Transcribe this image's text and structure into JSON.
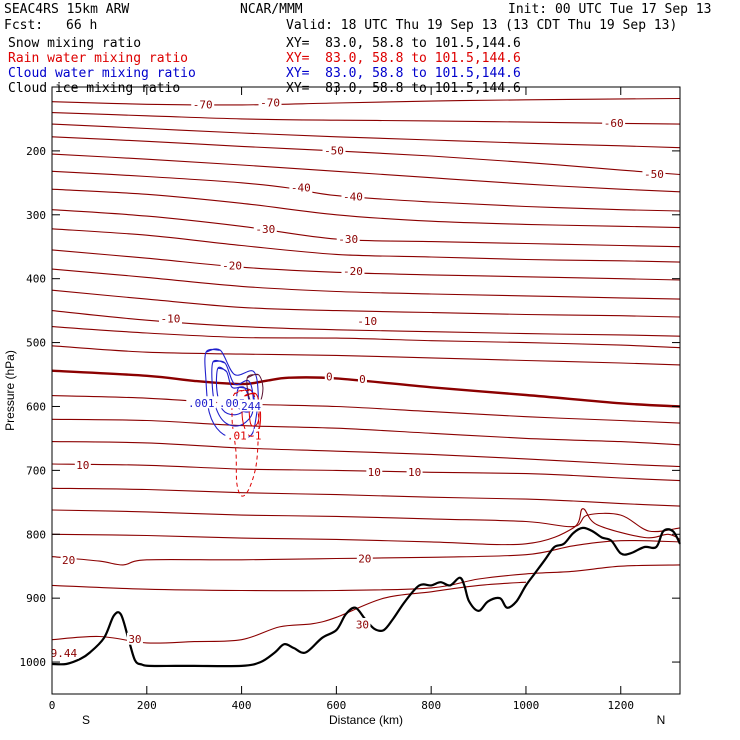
{
  "header": {
    "model": "SEAC4RS 15km ARW",
    "center": "NCAR/MMM",
    "init": "Init: 00 UTC Tue 17 Sep 13",
    "fcst_label": "Fcst:",
    "fcst_value": "66 h",
    "valid": "Valid: 18 UTC Thu 19 Sep 13 (13 CDT Thu 19 Sep 13)"
  },
  "fields": [
    {
      "name": "Snow mixing ratio",
      "xy": "XY=  83.0, 58.8 to 101.5,144.6",
      "color": "#000000"
    },
    {
      "name": "Rain water mixing ratio",
      "xy": "XY=  83.0, 58.8 to 101.5,144.6",
      "color": "#dd0000"
    },
    {
      "name": "Cloud water mixing ratio",
      "xy": "XY=  83.0, 58.8 to 101.5,144.6",
      "color": "#0000cc"
    },
    {
      "name": "Cloud ice mixing ratio",
      "xy": "XY=  83.0, 58.8 to 101.5,144.6",
      "color": "#000000"
    }
  ],
  "chart_data": {
    "type": "line",
    "xlabel": "Distance (km)",
    "ylabel": "Pressure (hPa)",
    "xlim": [
      0,
      1325
    ],
    "ylim": [
      1050,
      100
    ],
    "x_ticks": [
      0,
      200,
      400,
      600,
      800,
      1000,
      1200
    ],
    "x_tick_labels": [
      "0",
      "200",
      "400",
      "600",
      "800",
      "1000",
      "1200"
    ],
    "y_ticks": [
      200,
      300,
      400,
      500,
      600,
      700,
      800,
      900,
      1000
    ],
    "y_tick_labels": [
      "200",
      "300",
      "400",
      "500",
      "600",
      "700",
      "800",
      "900",
      "1000"
    ],
    "end_labels": {
      "left": "S",
      "right": "N"
    },
    "temperature_contour_color": "#8b0000",
    "temperature_labels": [
      {
        "text": "-70",
        "x": 318,
        "p": 128
      },
      {
        "text": "-70",
        "x": 460,
        "p": 125
      },
      {
        "text": "-60",
        "x": 1185,
        "p": 157
      },
      {
        "text": "-50",
        "x": 595,
        "p": 200
      },
      {
        "text": "-50",
        "x": 1270,
        "p": 237
      },
      {
        "text": "-40",
        "x": 525,
        "p": 258
      },
      {
        "text": "-40",
        "x": 635,
        "p": 272
      },
      {
        "text": "-30",
        "x": 450,
        "p": 323
      },
      {
        "text": "-30",
        "x": 625,
        "p": 339
      },
      {
        "text": "-20",
        "x": 380,
        "p": 380
      },
      {
        "text": "-20",
        "x": 635,
        "p": 389
      },
      {
        "text": "-10",
        "x": 250,
        "p": 463
      },
      {
        "text": "-10",
        "x": 665,
        "p": 467
      },
      {
        "text": "0",
        "x": 585,
        "p": 554
      },
      {
        "text": "0",
        "x": 655,
        "p": 558
      },
      {
        "text": "10",
        "x": 65,
        "p": 692
      },
      {
        "text": "10",
        "x": 680,
        "p": 703
      },
      {
        "text": "10",
        "x": 765,
        "p": 703
      },
      {
        "text": "20",
        "x": 35,
        "p": 841
      },
      {
        "text": "20",
        "x": 660,
        "p": 839
      },
      {
        "text": "30",
        "x": 175,
        "p": 965
      },
      {
        "text": "30",
        "x": 655,
        "p": 942
      },
      {
        "text": "9.44",
        "x": 25,
        "p": 987
      }
    ],
    "temperature_isotherms": [
      {
        "label": "-70",
        "x": [
          0,
          200,
          400,
          600,
          800,
          1000,
          1325
        ],
        "p": [
          123,
          127,
          128,
          125,
          122,
          120,
          118
        ]
      },
      {
        "label": "-60",
        "x": [
          0,
          200,
          400,
          600,
          800,
          1000,
          1200,
          1325
        ],
        "p": [
          140,
          145,
          150,
          152,
          153,
          155,
          157,
          158
        ]
      },
      {
        "label": "",
        "x": [
          0,
          200,
          400,
          600,
          800,
          1000,
          1200,
          1325
        ],
        "p": [
          158,
          165,
          172,
          178,
          183,
          188,
          192,
          195
        ]
      },
      {
        "label": "-50",
        "x": [
          0,
          200,
          400,
          600,
          800,
          1000,
          1200,
          1325
        ],
        "p": [
          178,
          185,
          193,
          200,
          208,
          218,
          230,
          237
        ]
      },
      {
        "label": "",
        "x": [
          0,
          200,
          400,
          600,
          800,
          1000,
          1200,
          1325
        ],
        "p": [
          205,
          213,
          222,
          232,
          242,
          252,
          260,
          264
        ]
      },
      {
        "label": "-40",
        "x": [
          0,
          200,
          400,
          500,
          600,
          800,
          1000,
          1200,
          1325
        ],
        "p": [
          232,
          240,
          250,
          258,
          270,
          280,
          287,
          292,
          294
        ]
      },
      {
        "label": "",
        "x": [
          0,
          200,
          400,
          600,
          800,
          1000,
          1200,
          1325
        ],
        "p": [
          260,
          268,
          282,
          300,
          310,
          315,
          318,
          320
        ]
      },
      {
        "label": "-30",
        "x": [
          0,
          200,
          400,
          600,
          800,
          1000,
          1200,
          1325
        ],
        "p": [
          292,
          302,
          318,
          338,
          342,
          345,
          348,
          350
        ]
      },
      {
        "label": "",
        "x": [
          0,
          200,
          400,
          600,
          800,
          1000,
          1200,
          1325
        ],
        "p": [
          322,
          332,
          348,
          362,
          366,
          370,
          372,
          374
        ]
      },
      {
        "label": "-20",
        "x": [
          0,
          200,
          400,
          600,
          800,
          1000,
          1200,
          1325
        ],
        "p": [
          355,
          368,
          382,
          390,
          394,
          397,
          400,
          402
        ]
      },
      {
        "label": "",
        "x": [
          0,
          200,
          400,
          600,
          800,
          1000,
          1200,
          1325
        ],
        "p": [
          385,
          398,
          412,
          420,
          424,
          427,
          430,
          432
        ]
      },
      {
        "label": "-10",
        "x": [
          0,
          200,
          400,
          600,
          800,
          1000,
          1200,
          1325
        ],
        "p": [
          418,
          432,
          445,
          450,
          453,
          456,
          458,
          460
        ]
      },
      {
        "label": "",
        "x": [
          0,
          200,
          400,
          600,
          800,
          1000,
          1200,
          1325
        ],
        "p": [
          450,
          465,
          475,
          480,
          483,
          486,
          488,
          490
        ]
      },
      {
        "label": "-10",
        "x": [
          0,
          200,
          400,
          600,
          800,
          1000,
          1200,
          1325
        ],
        "p": [
          475,
          485,
          492,
          493,
          497,
          500,
          504,
          508
        ]
      },
      {
        "label": "",
        "x": [
          0,
          200,
          400,
          600,
          800,
          1000,
          1200,
          1325
        ],
        "p": [
          505,
          515,
          518,
          520,
          524,
          528,
          532,
          535
        ]
      },
      {
        "label": "0",
        "x": [
          0,
          200,
          300,
          400,
          450,
          500,
          600,
          800,
          1000,
          1200,
          1325
        ],
        "p": [
          544,
          552,
          560,
          565,
          560,
          555,
          556,
          570,
          582,
          595,
          600
        ]
      },
      {
        "label": "",
        "x": [
          0,
          200,
          400,
          600,
          800,
          1000,
          1200,
          1325
        ],
        "p": [
          583,
          587,
          596,
          600,
          608,
          616,
          622,
          626
        ]
      },
      {
        "label": "",
        "x": [
          0,
          200,
          400,
          600,
          800,
          1000,
          1200,
          1325
        ],
        "p": [
          620,
          622,
          630,
          634,
          642,
          650,
          655,
          660
        ]
      },
      {
        "label": "",
        "x": [
          0,
          200,
          400,
          600,
          800,
          1000,
          1200,
          1325
        ],
        "p": [
          655,
          657,
          665,
          670,
          675,
          682,
          690,
          694
        ]
      },
      {
        "label": "10",
        "x": [
          0,
          200,
          400,
          600,
          800,
          1000,
          1100,
          1200,
          1325
        ],
        "p": [
          690,
          692,
          698,
          700,
          703,
          705,
          708,
          712,
          716
        ]
      },
      {
        "label": "",
        "x": [
          0,
          200,
          400,
          600,
          800,
          1000,
          1100,
          1200,
          1325
        ],
        "p": [
          728,
          730,
          735,
          738,
          742,
          745,
          748,
          752,
          756
        ]
      },
      {
        "label": "",
        "x": [
          0,
          200,
          400,
          600,
          800,
          1000,
          1100,
          1130,
          1200,
          1260,
          1325
        ],
        "p": [
          762,
          765,
          770,
          772,
          776,
          780,
          788,
          770,
          770,
          795,
          790
        ]
      },
      {
        "label": "",
        "x": [
          0,
          200,
          400,
          600,
          800,
          1000,
          1100,
          1120,
          1150,
          1250,
          1300,
          1325
        ],
        "p": [
          800,
          802,
          806,
          808,
          812,
          815,
          790,
          760,
          785,
          805,
          800,
          808
        ]
      },
      {
        "label": "20",
        "x": [
          0,
          100,
          150,
          200,
          400,
          600,
          800,
          1000,
          1100,
          1200,
          1325
        ],
        "p": [
          835,
          842,
          848,
          840,
          840,
          838,
          836,
          832,
          818,
          810,
          812
        ]
      },
      {
        "label": "",
        "x": [
          0,
          200,
          400,
          600,
          800,
          900,
          1000,
          1100,
          1200,
          1325
        ],
        "p": [
          880,
          886,
          888,
          888,
          884,
          870,
          862,
          858,
          850,
          848
        ]
      },
      {
        "label": "30",
        "x": [
          0,
          100,
          200,
          300,
          400,
          480,
          550,
          600,
          700,
          800,
          900,
          1000
        ],
        "p": [
          965,
          960,
          970,
          968,
          965,
          945,
          940,
          930,
          900,
          890,
          880,
          875
        ]
      }
    ],
    "terrain": {
      "x": [
        0,
        30,
        60,
        80,
        110,
        130,
        145,
        160,
        175,
        190,
        205,
        260,
        300,
        400,
        440,
        470,
        490,
        510,
        535,
        570,
        600,
        620,
        640,
        660,
        680,
        700,
        720,
        745,
        775,
        800,
        820,
        840,
        860,
        870,
        880,
        900,
        920,
        945,
        960,
        980,
        1000,
        1020,
        1040,
        1060,
        1080,
        1100,
        1120,
        1140,
        1160,
        1180,
        1200,
        1220,
        1250,
        1275,
        1290,
        1310,
        1325
      ],
      "p": [
        1003,
        1003,
        995,
        985,
        962,
        928,
        925,
        960,
        997,
        1004,
        1006,
        1006,
        1006,
        1006,
        1000,
        985,
        972,
        978,
        985,
        962,
        950,
        925,
        915,
        932,
        948,
        950,
        932,
        905,
        880,
        880,
        875,
        880,
        868,
        880,
        905,
        920,
        905,
        900,
        915,
        905,
        880,
        860,
        840,
        820,
        815,
        798,
        790,
        795,
        805,
        810,
        830,
        830,
        820,
        820,
        795,
        795,
        815
      ]
    },
    "rain_water_contour_color": "#dd0000",
    "cloud_water_contour_color": "#2020cc",
    "rain_labels": [
      {
        "text": ".01",
        "x": 390,
        "p": 646
      },
      {
        "text": "1",
        "x": 435,
        "p": 646
      }
    ],
    "cloud_water_labels": [
      {
        "text": ".001",
        "x": 315,
        "p": 595
      },
      {
        "text": ".005",
        "x": 380,
        "p": 595
      },
      {
        "text": "244",
        "x": 420,
        "p": 600
      }
    ]
  }
}
